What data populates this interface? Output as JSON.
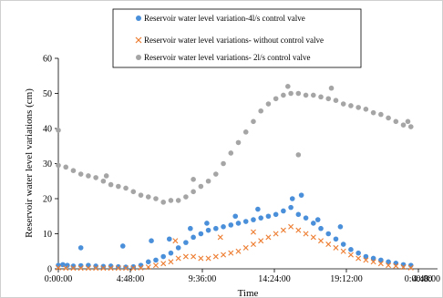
{
  "chart_data": {
    "type": "scatter",
    "title": "",
    "xlabel": "Time",
    "ylabel": "Reservoir water level variations (cm)",
    "x_unit": "hours of day",
    "xlim": [
      0,
      28.8
    ],
    "ylim": [
      0,
      60
    ],
    "x_ticks": [
      0,
      4.8,
      9.6,
      14.4,
      19.2,
      24.0,
      28.8
    ],
    "x_tick_labels": [
      "0:00:00",
      "4:48:00",
      "9:36:00",
      "14:24:00",
      "19:12:00",
      "0:00:00",
      "4:48:00"
    ],
    "y_ticks": [
      0,
      10,
      20,
      30,
      40,
      50,
      60
    ],
    "y_tick_labels": [
      "0",
      "10",
      "20",
      "30",
      "40",
      "50",
      "60"
    ],
    "grid": false,
    "legend_position": "top",
    "series": [
      {
        "name": "Reservoir water level variation-4l/s control valve",
        "marker": "circle",
        "color": "#4a8fd9",
        "x": [
          0.0,
          0.3,
          0.6,
          1.0,
          1.5,
          2.0,
          2.5,
          3.0,
          3.5,
          4.0,
          4.5,
          5.0,
          5.5,
          6.0,
          6.5,
          7.0,
          7.5,
          8.0,
          8.5,
          9.0,
          9.5,
          10.0,
          10.5,
          11.0,
          11.5,
          12.0,
          12.5,
          13.0,
          13.5,
          14.0,
          14.5,
          15.0,
          15.5,
          16.0,
          16.5,
          17.0,
          17.5,
          18.0,
          18.5,
          19.0,
          19.5,
          20.0,
          20.5,
          21.0,
          21.5,
          22.0,
          22.5,
          23.0,
          23.5,
          1.5,
          4.3,
          6.2,
          7.4,
          8.8,
          9.9,
          11.8,
          13.3,
          15.6,
          16.2,
          17.3,
          18.8
        ],
        "y": [
          1.0,
          1.2,
          1.0,
          0.8,
          0.9,
          1.0,
          0.8,
          0.7,
          0.8,
          0.6,
          0.5,
          0.6,
          1.0,
          2.0,
          2.5,
          3.5,
          4.5,
          6.0,
          7.5,
          9.0,
          10.0,
          11.0,
          11.5,
          12.0,
          12.5,
          13.0,
          13.5,
          14.0,
          14.5,
          15.0,
          15.5,
          16.5,
          17.5,
          15.5,
          14.5,
          13.0,
          11.5,
          10.0,
          8.5,
          7.0,
          5.5,
          4.5,
          3.5,
          3.0,
          2.5,
          2.0,
          1.6,
          1.2,
          1.0,
          6.0,
          6.5,
          8.0,
          8.5,
          11.5,
          13.0,
          15.0,
          17.0,
          20.0,
          21.0,
          14.0,
          12.0
        ]
      },
      {
        "name": "Reservoir water level variations- without control valve",
        "marker": "x",
        "color": "#ed7d31",
        "x": [
          0.0,
          0.5,
          1.0,
          1.5,
          2.0,
          2.5,
          3.0,
          3.5,
          4.0,
          4.5,
          5.0,
          5.5,
          6.0,
          6.5,
          7.0,
          7.5,
          8.0,
          8.5,
          9.0,
          9.5,
          10.0,
          10.5,
          11.0,
          11.5,
          12.0,
          12.5,
          13.0,
          13.5,
          14.0,
          14.5,
          15.0,
          15.5,
          16.0,
          16.5,
          17.0,
          17.5,
          18.0,
          18.5,
          19.0,
          19.5,
          20.0,
          20.5,
          21.0,
          21.5,
          22.0,
          22.5,
          23.0,
          23.5,
          7.8,
          10.8,
          13.0
        ],
        "y": [
          0.3,
          0.2,
          0.2,
          0.2,
          0.2,
          0.2,
          0.2,
          0.2,
          0.2,
          0.2,
          0.2,
          0.3,
          0.5,
          1.0,
          1.5,
          2.0,
          3.0,
          3.5,
          3.5,
          3.0,
          3.0,
          3.5,
          4.0,
          4.5,
          5.0,
          6.0,
          7.0,
          8.0,
          9.0,
          10.0,
          11.0,
          12.0,
          11.0,
          10.0,
          9.0,
          8.0,
          7.0,
          6.0,
          5.0,
          4.0,
          3.0,
          2.5,
          2.0,
          1.5,
          1.0,
          0.8,
          0.5,
          0.3,
          8.0,
          9.0,
          10.5
        ]
      },
      {
        "name": "Reservoir water level variations- 2l/s control valve",
        "marker": "circle",
        "color": "#a5a5a5",
        "x": [
          0.0,
          0.5,
          1.0,
          1.5,
          2.0,
          2.5,
          3.0,
          3.5,
          4.0,
          4.5,
          5.0,
          5.5,
          6.0,
          6.5,
          7.0,
          7.5,
          8.0,
          8.5,
          9.0,
          9.5,
          10.0,
          10.5,
          11.0,
          11.5,
          12.0,
          12.5,
          13.0,
          13.5,
          14.0,
          14.5,
          15.0,
          15.5,
          16.0,
          16.5,
          17.0,
          17.5,
          18.0,
          18.5,
          19.0,
          19.5,
          20.0,
          20.5,
          21.0,
          21.5,
          22.0,
          22.5,
          23.0,
          23.5,
          0.0,
          3.2,
          9.0,
          15.3,
          18.2,
          16.0,
          23.3
        ],
        "y": [
          29.5,
          29.0,
          28.0,
          27.0,
          26.5,
          26.0,
          25.0,
          24.0,
          23.5,
          23.0,
          22.0,
          21.0,
          20.5,
          20.0,
          19.0,
          19.5,
          19.5,
          20.5,
          22.0,
          23.5,
          25.0,
          27.0,
          30.0,
          33.0,
          36.0,
          39.0,
          42.0,
          45.0,
          47.0,
          48.5,
          49.5,
          50.0,
          50.0,
          49.5,
          49.5,
          49.0,
          48.5,
          48.0,
          47.0,
          46.5,
          46.0,
          45.5,
          44.5,
          44.0,
          43.0,
          42.0,
          41.0,
          40.5,
          39.5,
          26.5,
          25.5,
          52.0,
          51.5,
          32.5,
          42.0
        ]
      }
    ]
  }
}
